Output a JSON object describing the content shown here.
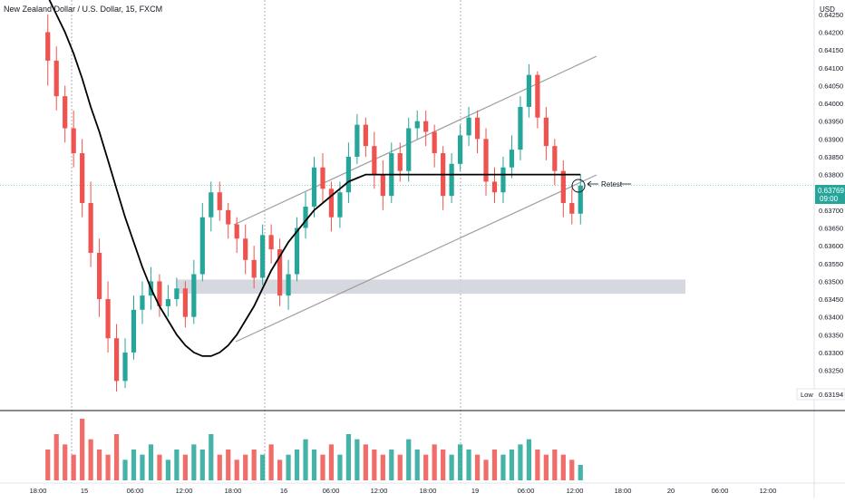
{
  "header": {
    "title": "New Zealand Dollar / U.S. Dollar, 15, FXCM"
  },
  "price_axis": {
    "currency": "USD",
    "current_price": "0.63769",
    "countdown": "09:00",
    "low_label": "Low",
    "low_value": "0.63194"
  },
  "annotation": {
    "retest": "Retest"
  },
  "colors": {
    "up": "#26a69a",
    "down": "#ef5350",
    "up_volume": "#26a69a",
    "down_volume": "#ef5350",
    "channel": "#9e9e9e",
    "curve": "#000000",
    "zone": "#d1d4dc",
    "current_price_bg": "#26a69a"
  },
  "chart_data": {
    "type": "candlestick",
    "title": "New Zealand Dollar / U.S. Dollar, 15, FXCM",
    "ylim": [
      0.6317,
      0.6427
    ],
    "y_ticks": [
      "0.64250",
      "0.64200",
      "0.64150",
      "0.64100",
      "0.64050",
      "0.64000",
      "0.63950",
      "0.63900",
      "0.63850",
      "0.63800",
      "0.63750",
      "0.63700",
      "0.63650",
      "0.63600",
      "0.63550",
      "0.63500",
      "0.63450",
      "0.63400",
      "0.63350",
      "0.63300",
      "0.63250"
    ],
    "x_ticks": [
      "18:00",
      "15",
      "06:00",
      "12:00",
      "18:00",
      "16",
      "06:00",
      "12:00",
      "18:00",
      "19",
      "06:00",
      "12:00",
      "18:00",
      "20",
      "06:00",
      "12:00"
    ],
    "day_separators": [
      "15",
      "16",
      "19"
    ],
    "current_price": 0.63769,
    "low": 0.63194,
    "support_zone": [
      0.63465,
      0.63505
    ],
    "channel": {
      "upper": [
        [
          0.6333,
          0.6369
        ],
        [
          0.6397,
          0.6413
        ]
      ],
      "lower": [
        [
          0.6334,
          0.6336
        ],
        [
          0.6398,
          0.6382
        ]
      ]
    },
    "candles": {
      "note": "15-minute OHLC price series",
      "open": [
        0.642,
        0.6412,
        0.6402,
        0.6393,
        0.6386,
        0.6372,
        0.6358,
        0.6345,
        0.6334,
        0.6322,
        0.633,
        0.6342,
        0.6346,
        0.635,
        0.6343,
        0.6345,
        0.6348,
        0.634,
        0.6352,
        0.6368,
        0.6375,
        0.637,
        0.6366,
        0.6362,
        0.6356,
        0.6351,
        0.6363,
        0.6359,
        0.6346,
        0.6352,
        0.6365,
        0.6371,
        0.6382,
        0.6376,
        0.6368,
        0.6375,
        0.6385,
        0.6394,
        0.6388,
        0.638,
        0.6374,
        0.6386,
        0.6381,
        0.6393,
        0.6395,
        0.6392,
        0.6386,
        0.6374,
        0.6383,
        0.6391,
        0.6396,
        0.639,
        0.6378,
        0.6375,
        0.6382,
        0.6387,
        0.6399,
        0.6408,
        0.6396,
        0.6388,
        0.6381,
        0.6372,
        0.6369
      ],
      "close": [
        0.6412,
        0.6402,
        0.6393,
        0.6386,
        0.6372,
        0.6358,
        0.6345,
        0.6334,
        0.6322,
        0.633,
        0.6342,
        0.6346,
        0.635,
        0.6343,
        0.6345,
        0.6348,
        0.634,
        0.6352,
        0.6368,
        0.6375,
        0.637,
        0.6366,
        0.6362,
        0.6356,
        0.6351,
        0.6363,
        0.6359,
        0.6346,
        0.6352,
        0.6365,
        0.6371,
        0.6382,
        0.6376,
        0.6368,
        0.6375,
        0.6385,
        0.6394,
        0.6388,
        0.638,
        0.6374,
        0.6386,
        0.6381,
        0.6393,
        0.6395,
        0.6392,
        0.6386,
        0.6374,
        0.6383,
        0.6391,
        0.6396,
        0.639,
        0.6378,
        0.6375,
        0.6382,
        0.6387,
        0.6399,
        0.6408,
        0.6396,
        0.6388,
        0.6381,
        0.6372,
        0.6369,
        0.63769
      ],
      "high": [
        0.6425,
        0.6416,
        0.6405,
        0.6398,
        0.639,
        0.6378,
        0.6362,
        0.635,
        0.6338,
        0.6334,
        0.6346,
        0.635,
        0.6354,
        0.6352,
        0.6349,
        0.6351,
        0.635,
        0.6356,
        0.6372,
        0.6378,
        0.6378,
        0.6372,
        0.6368,
        0.6366,
        0.636,
        0.6366,
        0.6366,
        0.6362,
        0.6356,
        0.6368,
        0.6375,
        0.6385,
        0.6386,
        0.6378,
        0.6378,
        0.6389,
        0.6397,
        0.6396,
        0.6392,
        0.6384,
        0.6389,
        0.6389,
        0.6396,
        0.6398,
        0.6398,
        0.6394,
        0.6388,
        0.6386,
        0.6394,
        0.6399,
        0.6398,
        0.6393,
        0.6382,
        0.6385,
        0.6391,
        0.6402,
        0.6411,
        0.6409,
        0.6399,
        0.639,
        0.6384,
        0.6376,
        0.638
      ],
      "low": [
        0.6405,
        0.6398,
        0.6389,
        0.6382,
        0.6368,
        0.6354,
        0.634,
        0.633,
        0.6319,
        0.632,
        0.6328,
        0.6338,
        0.6342,
        0.634,
        0.634,
        0.6343,
        0.6337,
        0.6338,
        0.635,
        0.6364,
        0.6367,
        0.6362,
        0.6358,
        0.6352,
        0.6348,
        0.6349,
        0.6355,
        0.6343,
        0.6342,
        0.635,
        0.6362,
        0.6368,
        0.6372,
        0.6364,
        0.6365,
        0.6372,
        0.6383,
        0.6385,
        0.6376,
        0.637,
        0.6372,
        0.6378,
        0.6378,
        0.639,
        0.6388,
        0.6382,
        0.637,
        0.6372,
        0.6381,
        0.6388,
        0.6386,
        0.6374,
        0.6372,
        0.6372,
        0.6379,
        0.6384,
        0.6396,
        0.6393,
        0.6384,
        0.6377,
        0.6368,
        0.6366,
        0.6366
      ],
      "volume": [
        6,
        9,
        7,
        5,
        12,
        8,
        6,
        5,
        9,
        4,
        6,
        5,
        7,
        5,
        4,
        6,
        5,
        7,
        6,
        9,
        5,
        6,
        4,
        5,
        6,
        5,
        7,
        4,
        5,
        6,
        8,
        6,
        5,
        7,
        5,
        9,
        8,
        7,
        6,
        5,
        6,
        5,
        8,
        6,
        5,
        7,
        6,
        5,
        7,
        6,
        5,
        4,
        6,
        5,
        6,
        7,
        8,
        6,
        5,
        6,
        5,
        4,
        3
      ]
    },
    "moving_average": {
      "note": "black moving-average curve, price values per candle index",
      "values": [
        0.643,
        0.6425,
        0.642,
        0.6414,
        0.6407,
        0.6399,
        0.6392,
        0.6384,
        0.6376,
        0.6368,
        0.6361,
        0.6354,
        0.6348,
        0.6343,
        0.6339,
        0.6335,
        0.6332,
        0.633,
        0.6329,
        0.6329,
        0.633,
        0.6332,
        0.6335,
        0.6339,
        0.6343,
        0.6348,
        0.6353,
        0.6357,
        0.6361,
        0.6364,
        0.6367,
        0.637,
        0.6372,
        0.6374,
        0.6376,
        0.6378,
        0.6379,
        0.638,
        0.638,
        0.638,
        0.638,
        0.638,
        0.638,
        0.638,
        0.638,
        0.638,
        0.638,
        0.638,
        0.638,
        0.638,
        0.638,
        0.638,
        0.638,
        0.638,
        0.638,
        0.638,
        0.638,
        0.638,
        0.638,
        0.638,
        0.638,
        0.638,
        0.638
      ]
    }
  }
}
